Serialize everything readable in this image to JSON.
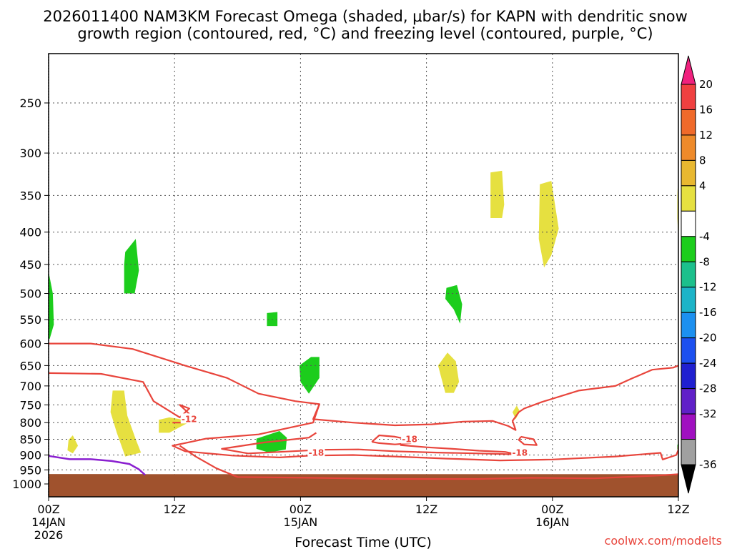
{
  "chart_data": {
    "type": "time-height cross section",
    "title_line1": "2026011400 NAM3KM Forecast Omega (shaded, μbar/s) for KAPN with dendritic snow",
    "title_line2": "growth region (contoured, red, °C) and freezing level (contoured, purple, °C)",
    "xlabel": "Forecast Time (UTC)",
    "credit": "coolwx.com/modelts",
    "x_ticks": [
      {
        "hour": 0,
        "label": "00Z",
        "date": "14JAN",
        "year": "2026"
      },
      {
        "hour": 12,
        "label": "12Z",
        "date": "",
        "year": ""
      },
      {
        "hour": 24,
        "label": "00Z",
        "date": "15JAN",
        "year": ""
      },
      {
        "hour": 36,
        "label": "12Z",
        "date": "",
        "year": ""
      },
      {
        "hour": 48,
        "label": "00Z",
        "date": "16JAN",
        "year": ""
      },
      {
        "hour": 60,
        "label": "12Z",
        "date": "",
        "year": ""
      }
    ],
    "xlim": [
      0,
      60
    ],
    "y_ticks": [
      250,
      300,
      350,
      400,
      450,
      500,
      550,
      600,
      650,
      700,
      750,
      800,
      850,
      900,
      950,
      1000
    ],
    "ylim": [
      200,
      1050
    ],
    "y_units": "hPa",
    "colorbar": {
      "labels": [
        "20",
        "16",
        "12",
        "8",
        "4",
        "-4",
        "-8",
        "-12",
        "-16",
        "-20",
        "-24",
        "-28",
        "-32",
        "-36"
      ],
      "colors": [
        "#f0217e",
        "#f04040",
        "#f06a2a",
        "#ee8a2a",
        "#e8b830",
        "#e6e040",
        "#ffffff",
        "#1ccd1c",
        "#1cc08c",
        "#1cb4c8",
        "#1c90f0",
        "#1c50f0",
        "#2020d0",
        "#6020c8",
        "#a010c0",
        "#a0a0a0",
        "#000000"
      ]
    },
    "omega_regions": [
      {
        "name": "ascent-1",
        "color": "#1ccd1c",
        "points": [
          [
            0,
            462
          ],
          [
            0.4,
            500
          ],
          [
            0.5,
            560
          ],
          [
            0.1,
            590
          ],
          [
            0,
            590
          ]
        ]
      },
      {
        "name": "ascent-2",
        "color": "#1ccd1c",
        "points": [
          [
            7.3,
            430
          ],
          [
            8.3,
            410
          ],
          [
            8.6,
            460
          ],
          [
            8.2,
            500
          ],
          [
            7.2,
            500
          ],
          [
            7.2,
            450
          ]
        ]
      },
      {
        "name": "ascent-3",
        "color": "#1ccd1c",
        "points": [
          [
            20.8,
            537
          ],
          [
            21.8,
            535
          ],
          [
            21.8,
            563
          ],
          [
            20.8,
            563
          ]
        ]
      },
      {
        "name": "ascent-4",
        "color": "#1ccd1c",
        "points": [
          [
            19.8,
            848
          ],
          [
            22,
            825
          ],
          [
            22.7,
            845
          ],
          [
            22.6,
            882
          ],
          [
            21,
            892
          ],
          [
            19.8,
            880
          ]
        ]
      },
      {
        "name": "ascent-5",
        "color": "#1ccd1c",
        "points": [
          [
            23.9,
            650
          ],
          [
            25,
            630
          ],
          [
            25.8,
            630
          ],
          [
            25.8,
            680
          ],
          [
            24.8,
            720
          ],
          [
            24,
            690
          ]
        ]
      },
      {
        "name": "ascent-6",
        "color": "#1ccd1c",
        "points": [
          [
            37.9,
            490
          ],
          [
            38.9,
            485
          ],
          [
            39.4,
            520
          ],
          [
            39.2,
            558
          ],
          [
            38.6,
            530
          ],
          [
            37.8,
            510
          ]
        ]
      },
      {
        "name": "ascent-7",
        "color": "#1ccd1c",
        "points": [
          [
            59.9,
            868
          ],
          [
            60.5,
            862
          ],
          [
            60.7,
            872
          ],
          [
            60.4,
            880
          ],
          [
            59.9,
            882
          ]
        ]
      },
      {
        "name": "descent-1",
        "color": "#e6e040",
        "points": [
          [
            1.9,
            852
          ],
          [
            2.3,
            838
          ],
          [
            2.8,
            870
          ],
          [
            2.3,
            895
          ],
          [
            1.8,
            885
          ]
        ]
      },
      {
        "name": "descent-2",
        "color": "#e6e040",
        "points": [
          [
            6.1,
            712
          ],
          [
            7.2,
            712
          ],
          [
            7.5,
            780
          ],
          [
            8.3,
            850
          ],
          [
            8.8,
            892
          ],
          [
            7.3,
            905
          ],
          [
            6.5,
            830
          ],
          [
            5.9,
            770
          ]
        ]
      },
      {
        "name": "descent-3",
        "color": "#e6e040",
        "points": [
          [
            10.5,
            792
          ],
          [
            11.5,
            785
          ],
          [
            12.5,
            790
          ],
          [
            13.3,
            800
          ],
          [
            11.5,
            830
          ],
          [
            10.5,
            830
          ]
        ]
      },
      {
        "name": "descent-4",
        "color": "#e6e040",
        "points": [
          [
            37.1,
            650
          ],
          [
            38,
            620
          ],
          [
            38.8,
            640
          ],
          [
            39.1,
            690
          ],
          [
            38.6,
            718
          ],
          [
            37.8,
            718
          ]
        ]
      },
      {
        "name": "descent-5",
        "color": "#e6e040",
        "points": [
          [
            42.1,
            322
          ],
          [
            43.2,
            320
          ],
          [
            43.4,
            362
          ],
          [
            43.2,
            380
          ],
          [
            42.1,
            380
          ]
        ]
      },
      {
        "name": "descent-6",
        "color": "#e6e040",
        "points": [
          [
            44.2,
            770
          ],
          [
            44.6,
            752
          ],
          [
            44.9,
            768
          ],
          [
            44.5,
            790
          ]
        ]
      },
      {
        "name": "descent-7",
        "color": "#e6e040",
        "points": [
          [
            46.8,
            336
          ],
          [
            47.9,
            332
          ],
          [
            48.6,
            395
          ],
          [
            47.9,
            435
          ],
          [
            47.2,
            455
          ],
          [
            46.7,
            410
          ]
        ]
      },
      {
        "name": "descent-8",
        "color": "#e6e040",
        "points": [
          [
            59.9,
            340
          ],
          [
            60.6,
            370
          ],
          [
            61.2,
            420
          ],
          [
            60.5,
            410
          ],
          [
            59.9,
            380
          ]
        ]
      }
    ],
    "dgz_contours": [
      {
        "label": "-12",
        "points": [
          [
            0,
            600
          ],
          [
            4,
            600
          ],
          [
            8,
            612
          ],
          [
            13,
            650
          ],
          [
            17,
            680
          ],
          [
            20,
            720
          ],
          [
            23.5,
            740
          ],
          [
            25.8,
            748
          ],
          [
            25.2,
            800
          ],
          [
            20,
            835
          ],
          [
            15,
            848
          ],
          [
            11.8,
            870
          ],
          [
            13,
            888
          ],
          [
            17.5,
            902
          ],
          [
            22,
            908
          ],
          [
            25,
            902
          ],
          [
            29,
            900
          ],
          [
            33,
            905
          ],
          [
            38,
            912
          ],
          [
            43,
            918
          ],
          [
            48,
            915
          ],
          [
            54,
            905
          ],
          [
            58.3,
            893
          ],
          [
            58.5,
            915
          ],
          [
            59.8,
            900
          ],
          [
            60.5,
            883
          ],
          [
            61.5,
            872
          ]
        ]
      },
      {
        "label": "-12",
        "points": [
          [
            0,
            668
          ],
          [
            5,
            670
          ],
          [
            9,
            690
          ],
          [
            10,
            740
          ],
          [
            12.5,
            785
          ],
          [
            13.4,
            760
          ],
          [
            12.5,
            750
          ],
          [
            13.4,
            775
          ],
          [
            12.8,
            800
          ],
          [
            11.8,
            800
          ]
        ]
      },
      {
        "label": "-18",
        "points": [
          [
            30.8,
            858
          ],
          [
            31.5,
            838
          ],
          [
            33,
            842
          ],
          [
            34.2,
            850
          ],
          [
            34.5,
            862
          ],
          [
            33,
            866
          ],
          [
            31.5,
            862
          ],
          [
            30.8,
            858
          ]
        ]
      },
      {
        "label": "-18",
        "points": [
          [
            45,
            842
          ],
          [
            46.2,
            850
          ],
          [
            46.5,
            868
          ],
          [
            45.3,
            866
          ],
          [
            44.8,
            852
          ],
          [
            45,
            842
          ]
        ]
      },
      {
        "label": "-18",
        "points": [
          [
            0,
            1000
          ],
          [
            13.5,
            1000
          ]
        ]
      },
      {
        "label": "-18",
        "points": [
          [
            13.5,
            1000
          ]
        ]
      }
    ],
    "dgz_main_lower": [
      [
        12.5,
        870
      ],
      [
        14,
        905
      ],
      [
        16,
        945
      ],
      [
        18,
        975
      ],
      [
        25,
        978
      ],
      [
        32,
        982
      ],
      [
        41,
        982
      ],
      [
        46,
        978
      ],
      [
        52,
        980
      ],
      [
        58,
        970
      ],
      [
        61.5,
        965
      ]
    ],
    "dgz_upper_right": [
      [
        25.8,
        748
      ],
      [
        25.2,
        790
      ],
      [
        29,
        800
      ],
      [
        33,
        808
      ],
      [
        36.5,
        805
      ],
      [
        39.5,
        797
      ],
      [
        42.3,
        795
      ],
      [
        43.8,
        810
      ],
      [
        44.5,
        822
      ],
      [
        44.2,
        795
      ],
      [
        44.8,
        770
      ],
      [
        45.3,
        760
      ],
      [
        47,
        742
      ],
      [
        50.5,
        712
      ],
      [
        54,
        700
      ],
      [
        55.5,
        682
      ],
      [
        57.5,
        660
      ],
      [
        59.5,
        655
      ],
      [
        61.5,
        650
      ]
    ],
    "dgz_middle": [
      [
        33.5,
        868
      ],
      [
        36,
        875
      ],
      [
        38.5,
        880
      ],
      [
        41,
        886
      ],
      [
        43.5,
        890
      ],
      [
        44.6,
        898
      ],
      [
        41,
        895
      ],
      [
        37,
        892
      ],
      [
        33,
        888
      ],
      [
        29.5,
        882
      ],
      [
        26,
        883
      ],
      [
        22,
        890
      ],
      [
        19,
        895
      ],
      [
        16.5,
        880
      ],
      [
        20.5,
        860
      ],
      [
        24.8,
        845
      ],
      [
        25.5,
        830
      ]
    ],
    "contour_labels": [
      {
        "text": "-12",
        "hour": 13.4,
        "p": 790
      },
      {
        "text": "-18",
        "hour": 34.4,
        "p": 850
      },
      {
        "text": "-18",
        "hour": 44.9,
        "p": 893
      },
      {
        "text": "-18",
        "hour": 25.5,
        "p": 893
      }
    ],
    "freezing_level": [
      [
        0,
        903
      ],
      [
        2,
        914
      ],
      [
        4,
        914
      ],
      [
        6,
        920
      ],
      [
        7.7,
        930
      ],
      [
        8.6,
        948
      ],
      [
        9.2,
        968
      ]
    ],
    "terrain_top_p": 965,
    "terrain_color": "#a0522d"
  }
}
